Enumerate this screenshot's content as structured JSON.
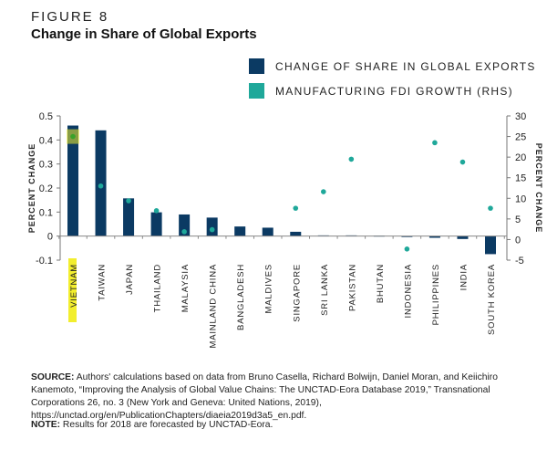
{
  "figure_label": "FIGURE 8",
  "chart_data": {
    "type": "bar",
    "title": "Change in Share of Global Exports",
    "categories": [
      "VIETNAM",
      "TAIWAN",
      "JAPAN",
      "THAILAND",
      "MALAYSIA",
      "MAINLAND CHINA",
      "BANGLADESH",
      "MALDIVES",
      "SINGAPORE",
      "SRI LANKA",
      "PAKISTAN",
      "BHUTAN",
      "INDONESIA",
      "PHILIPPINES",
      "INDIA",
      "SOUTH KOREA"
    ],
    "highlighted_category": "VIETNAM",
    "series": [
      {
        "name": "CHANGE OF SHARE IN GLOBAL EXPORTS",
        "type": "bar",
        "axis": "left",
        "color": "#0b3a63",
        "values": [
          0.46,
          0.44,
          0.157,
          0.099,
          0.09,
          0.077,
          0.04,
          0.035,
          0.018,
          0.003,
          0.003,
          0.002,
          -0.003,
          -0.007,
          -0.012,
          -0.075
        ]
      },
      {
        "name": "MANUFACTURING FDI GROWTH (RHS)",
        "type": "scatter",
        "axis": "right",
        "color": "#1fa89a",
        "values": [
          25,
          13,
          9.4,
          7,
          1.9,
          2.4,
          null,
          null,
          7.6,
          11.6,
          19.5,
          null,
          -2.3,
          23.5,
          18.8,
          7.6
        ]
      }
    ],
    "ylabel": "PERCENT CHANGE",
    "ylim": [
      -0.1,
      0.5
    ],
    "yticks": [
      "0.5",
      "0.4",
      "0.3",
      "0.2",
      "0.1",
      "0",
      "-0.1"
    ],
    "y2label": "PERCENT CHANGE",
    "y2lim": [
      -5,
      30
    ],
    "y2ticks": [
      "30",
      "25",
      "20",
      "15",
      "10",
      "5",
      "0",
      "-5"
    ],
    "legend_position": "top-right",
    "highlight_color": "#f2ee2e"
  },
  "source_label": "SOURCE:",
  "source_text": "Authors' calculations based on data from Bruno Casella, Richard Bolwijn, Daniel Moran, and Keiichiro Kanemoto, “Improving the Analysis of Global Value Chains: The UNCTAD-Eora Database 2019,” Transnational Corporations 26, no. 3 (New York and Geneva: United Nations, 2019), https://unctad.org/en/PublicationChapters/diaeia2019d3a5_en.pdf.",
  "note_label": "NOTE:",
  "note_text": "Results for 2018 are forecasted by UNCTAD-Eora."
}
